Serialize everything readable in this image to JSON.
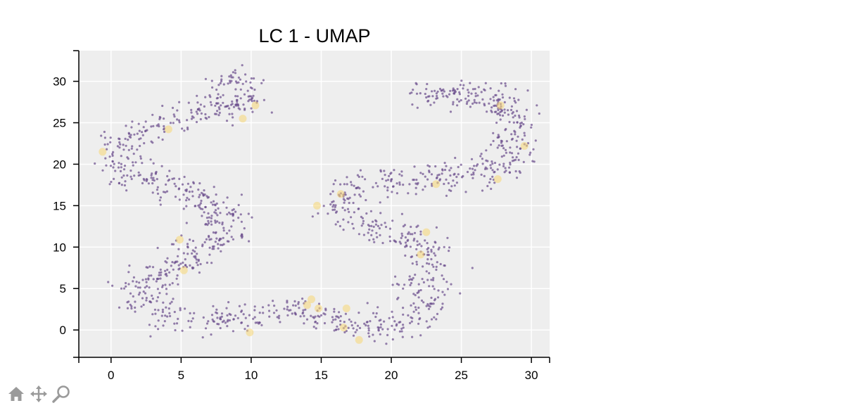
{
  "chart_data": {
    "type": "scatter",
    "title": "LC 1 - UMAP",
    "xlabel": "",
    "ylabel": "",
    "xlim": [
      -2.3,
      31.3
    ],
    "ylim": [
      -3.3,
      33.7
    ],
    "xticks": [
      0,
      5,
      10,
      15,
      20,
      25,
      30
    ],
    "yticks": [
      0,
      5,
      10,
      15,
      20,
      25,
      30
    ],
    "grid": true,
    "background": "#eeeeee",
    "colors": {
      "base": "#6a4c8c",
      "highlight": "#f7d774"
    },
    "path": [
      [
        7.8,
        30.8
      ],
      [
        10.2,
        28.5
      ],
      [
        9.0,
        26.5
      ],
      [
        6.0,
        26.8
      ],
      [
        4.0,
        24.8
      ],
      [
        1.5,
        23.8
      ],
      [
        0.0,
        21.5
      ],
      [
        0.8,
        19.2
      ],
      [
        3.0,
        18.0
      ],
      [
        5.5,
        16.5
      ],
      [
        7.0,
        15.5
      ],
      [
        8.5,
        12.5
      ],
      [
        7.0,
        10.0
      ],
      [
        5.0,
        8.5
      ],
      [
        3.0,
        6.5
      ],
      [
        2.0,
        4.0
      ],
      [
        3.5,
        2.0
      ],
      [
        6.0,
        1.0
      ],
      [
        9.0,
        1.5
      ],
      [
        12.0,
        2.0
      ],
      [
        14.5,
        2.5
      ],
      [
        16.5,
        1.5
      ],
      [
        18.5,
        0.0
      ],
      [
        20.5,
        0.0
      ],
      [
        22.0,
        2.5
      ],
      [
        22.5,
        6.0
      ],
      [
        23.0,
        9.0
      ],
      [
        21.5,
        11.5
      ],
      [
        18.0,
        12.5
      ],
      [
        16.5,
        14.0
      ],
      [
        16.0,
        16.0
      ],
      [
        17.5,
        17.5
      ],
      [
        20.0,
        18.0
      ],
      [
        24.0,
        18.5
      ],
      [
        27.5,
        19.0
      ],
      [
        29.0,
        21.0
      ],
      [
        29.0,
        24.0
      ],
      [
        28.5,
        27.0
      ],
      [
        26.0,
        28.8
      ],
      [
        23.5,
        28.0
      ],
      [
        21.5,
        28.8
      ]
    ],
    "highlights": [
      [
        -0.6,
        21.5
      ],
      [
        4.1,
        24.2
      ],
      [
        9.4,
        25.5
      ],
      [
        10.3,
        27.1
      ],
      [
        4.9,
        10.9
      ],
      [
        5.2,
        7.2
      ],
      [
        9.9,
        -0.3
      ],
      [
        14.7,
        15.0
      ],
      [
        16.4,
        16.4
      ],
      [
        14.0,
        3.0
      ],
      [
        14.3,
        3.7
      ],
      [
        14.8,
        2.6
      ],
      [
        16.8,
        2.6
      ],
      [
        16.6,
        0.3
      ],
      [
        17.7,
        -1.2
      ],
      [
        22.5,
        11.8
      ],
      [
        22.1,
        9.1
      ],
      [
        23.2,
        17.6
      ],
      [
        27.6,
        18.2
      ],
      [
        27.8,
        27.1
      ],
      [
        29.5,
        22.2
      ]
    ],
    "point_count": 1500,
    "band_half_width": 0.9
  }
}
